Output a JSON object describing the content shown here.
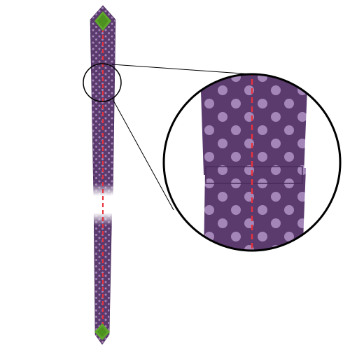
{
  "colors": {
    "fabric": "#5b3a6e",
    "fabric_edge": "#4a2d5c",
    "dot": "#a487b8",
    "seam": "#e8323c",
    "end_patch": "#5ea82b",
    "end_patch_dark": "#3f7f1a",
    "outline": "#000000",
    "background": "#ffffff"
  },
  "icons": {
    "magnifier": "magnifier-circle-icon"
  }
}
